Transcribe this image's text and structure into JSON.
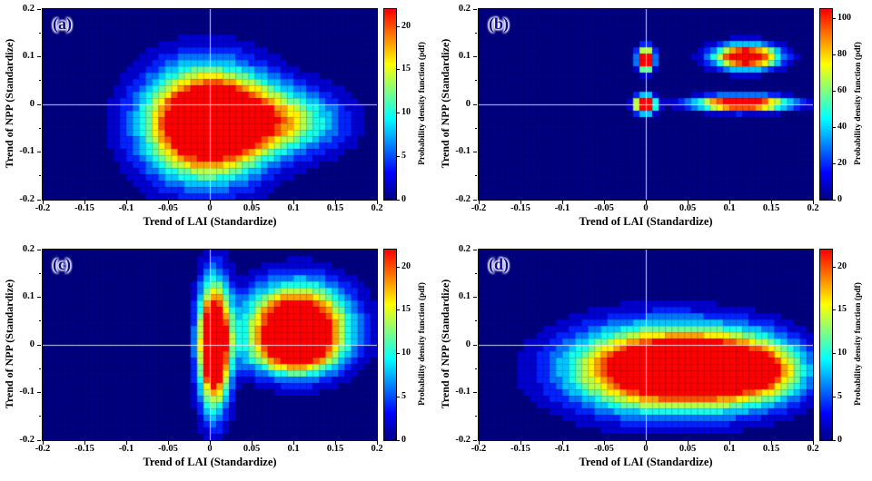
{
  "figure_title": "",
  "chart_data": [
    {
      "type": "heatmap",
      "panel_label": "(a)",
      "xlabel": "Trend of LAI (Standardize)",
      "ylabel": "Trend of NPP (Standardize)",
      "colorbar_label": "Probability density function (pdf)",
      "colormap": "jet",
      "xlim": [
        -0.2,
        0.2
      ],
      "ylim": [
        -0.2,
        0.2
      ],
      "xtick_values": [
        -0.2,
        -0.15,
        -0.1,
        -0.05,
        0,
        0.05,
        0.1,
        0.15,
        0.2
      ],
      "xtick_labels": [
        "-0.2",
        "-0.15",
        "-0.1",
        "-0.05",
        "0",
        "0.05",
        "0.1",
        "0.15",
        "0.2"
      ],
      "ytick_values": [
        -0.2,
        -0.1,
        0,
        0.1,
        0.2
      ],
      "ytick_labels": [
        "-0.2",
        "-0.1",
        "0",
        "0.1",
        "0.2"
      ],
      "y_minor_ticks": [
        -0.15,
        -0.05,
        0.05,
        0.15
      ],
      "colorbar_ticks": [
        0,
        5,
        10,
        15,
        20
      ],
      "vmax": 22,
      "crosshair": {
        "x": 0,
        "y": 0
      },
      "blobs": [
        {
          "cx": -0.005,
          "cy": -0.04,
          "sx": 0.05,
          "sy": 0.08,
          "amp": 30
        },
        {
          "cx": 0.055,
          "cy": -0.03,
          "sx": 0.055,
          "sy": 0.05,
          "amp": 12
        },
        {
          "cx": 0.12,
          "cy": -0.04,
          "sx": 0.04,
          "sy": 0.045,
          "amp": 5
        }
      ]
    },
    {
      "type": "heatmap",
      "panel_label": "(b)",
      "xlabel": "Trend of LAI (Standardize)",
      "ylabel": "Trend of NPP (Standardize)",
      "colorbar_label": "Probability density function (pdf)",
      "colormap": "jet",
      "xlim": [
        -0.2,
        0.2
      ],
      "ylim": [
        -0.2,
        0.2
      ],
      "xtick_values": [
        -0.2,
        -0.15,
        -0.1,
        -0.05,
        0,
        0.05,
        0.1,
        0.15,
        0.2
      ],
      "xtick_labels": [
        "-0.2",
        "-0.15",
        "-0.1",
        "-0.05",
        "0",
        "0.05",
        "0.1",
        "0.15",
        "0.2"
      ],
      "ytick_values": [
        -0.2,
        -0.1,
        0,
        0.1,
        0.2
      ],
      "ytick_labels": [
        "-0.2",
        "-0.1",
        "0",
        "0.1",
        "0.2"
      ],
      "y_minor_ticks": [
        -0.15,
        -0.05,
        0.05,
        0.15
      ],
      "colorbar_ticks": [
        0,
        20,
        40,
        60,
        80,
        100
      ],
      "vmax": 105,
      "crosshair": {
        "x": 0,
        "y": 0
      },
      "blobs": [
        {
          "cx": 0.0,
          "cy": 0.095,
          "sx": 0.007,
          "sy": 0.018,
          "amp": 130
        },
        {
          "cx": -0.001,
          "cy": 0.0,
          "sx": 0.009,
          "sy": 0.013,
          "amp": 140
        },
        {
          "cx": 0.12,
          "cy": 0.1,
          "sx": 0.027,
          "sy": 0.018,
          "amp": 130
        },
        {
          "cx": 0.115,
          "cy": 0.002,
          "sx": 0.038,
          "sy": 0.011,
          "amp": 130
        }
      ]
    },
    {
      "type": "heatmap",
      "panel_label": "(c)",
      "xlabel": "Trend of LAI (Standardize)",
      "ylabel": "Trend of NPP (Standardize)",
      "colorbar_label": "Probability density function (pdf)",
      "colormap": "jet",
      "xlim": [
        -0.2,
        0.2
      ],
      "ylim": [
        -0.2,
        0.2
      ],
      "xtick_values": [
        -0.2,
        -0.15,
        -0.1,
        -0.05,
        0,
        0.05,
        0.1,
        0.15,
        0.2
      ],
      "xtick_labels": [
        "-0.2",
        "-0.15",
        "-0.1",
        "-0.05",
        "0",
        "0.05",
        "0.1",
        "0.15",
        "0.2"
      ],
      "ytick_values": [
        -0.2,
        -0.1,
        0,
        0.1,
        0.2
      ],
      "ytick_labels": [
        "-0.2",
        "-0.1",
        "0",
        "0.1",
        "0.2"
      ],
      "y_minor_ticks": [
        -0.15,
        -0.05,
        0.05,
        0.15
      ],
      "colorbar_ticks": [
        0,
        5,
        10,
        15,
        20
      ],
      "vmax": 22,
      "crosshair": {
        "x": 0,
        "y": 0
      },
      "blobs": [
        {
          "cx": 0.005,
          "cy": 0.0,
          "sx": 0.013,
          "sy": 0.09,
          "amp": 32
        },
        {
          "cx": 0.105,
          "cy": 0.04,
          "sx": 0.042,
          "sy": 0.06,
          "amp": 30
        },
        {
          "cx": 0.1,
          "cy": -0.02,
          "sx": 0.035,
          "sy": 0.03,
          "amp": 10
        }
      ]
    },
    {
      "type": "heatmap",
      "panel_label": "(d)",
      "xlabel": "Trend of LAI (Standardize)",
      "ylabel": "Trend of NPP (Standardize)",
      "colorbar_label": "Probability density function (pdf)",
      "colormap": "jet",
      "xlim": [
        -0.2,
        0.2
      ],
      "ylim": [
        -0.2,
        0.2
      ],
      "xtick_values": [
        -0.2,
        -0.15,
        -0.1,
        -0.05,
        0,
        0.05,
        0.1,
        0.15,
        0.2
      ],
      "xtick_labels": [
        "-0.2",
        "-0.15",
        "-0.1",
        "-0.05",
        "0",
        "0.05",
        "0.1",
        "0.15",
        "0.2"
      ],
      "ytick_values": [
        -0.2,
        -0.1,
        0,
        0.1,
        0.2
      ],
      "ytick_labels": [
        "-0.2",
        "-0.1",
        "0",
        "0.1",
        "0.2"
      ],
      "y_minor_ticks": [
        -0.15,
        -0.05,
        0.05,
        0.15
      ],
      "colorbar_ticks": [
        0,
        5,
        10,
        15,
        20
      ],
      "vmax": 22,
      "crosshair": {
        "x": 0,
        "y": 0
      },
      "blobs": [
        {
          "cx": 0.02,
          "cy": -0.05,
          "sx": 0.075,
          "sy": 0.06,
          "amp": 30
        },
        {
          "cx": 0.11,
          "cy": -0.05,
          "sx": 0.05,
          "sy": 0.05,
          "amp": 16
        },
        {
          "cx": 0.155,
          "cy": -0.06,
          "sx": 0.03,
          "sy": 0.04,
          "amp": 5
        }
      ]
    }
  ],
  "colors": {
    "background": "#ffffff",
    "density_background": "#00008c",
    "panel_letter": "#0a0a96",
    "axis": "#000000",
    "crosshair": "#f2f2f2"
  }
}
